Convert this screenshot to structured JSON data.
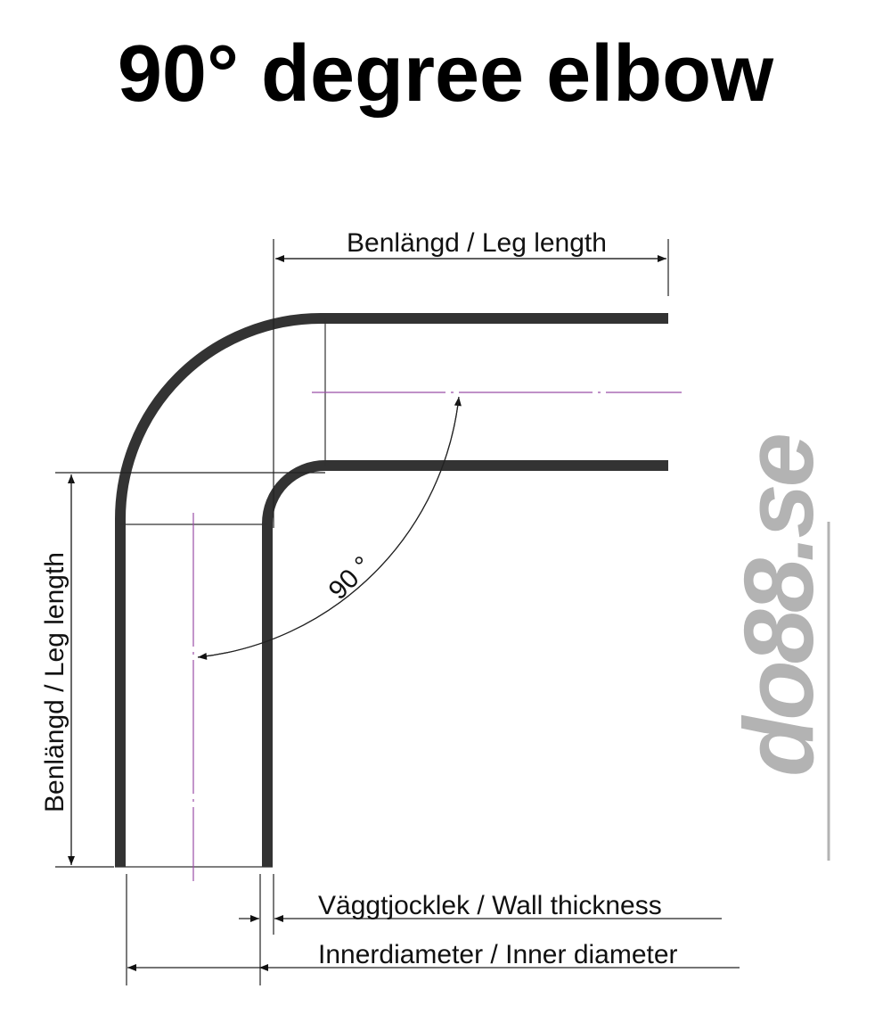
{
  "title": "90° degree elbow",
  "labels": {
    "leg_length_top": "Benlängd / Leg length",
    "leg_length_left": "Benlängd / Leg length",
    "angle": "90 °",
    "wall_thickness": "Väggtjocklek / Wall thickness",
    "inner_diameter": "Innerdiameter / Inner diameter"
  },
  "logo": {
    "text": "do88.se",
    "color": "#b3b3b3"
  },
  "colors": {
    "pipe": "#333333",
    "centerline": "#9b4fa8",
    "dimension": "#222222"
  }
}
